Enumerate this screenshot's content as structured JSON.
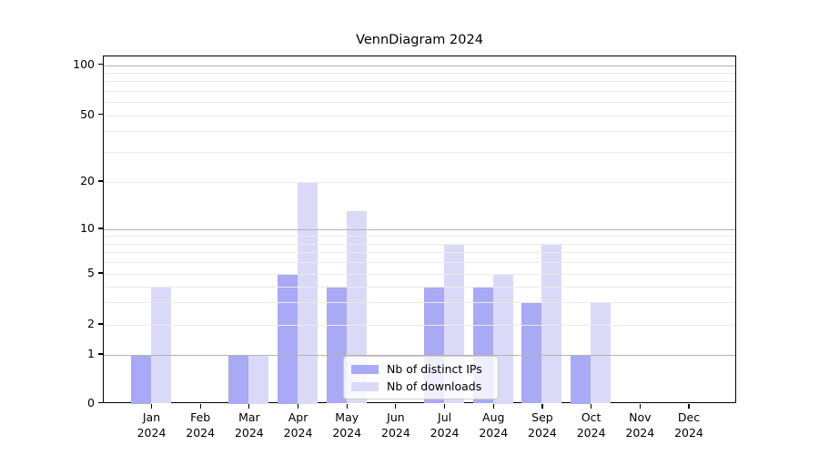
{
  "chart_data": {
    "type": "bar",
    "title": "VennDiagram 2024",
    "categories": [
      {
        "month": "Jan",
        "year": "2024"
      },
      {
        "month": "Feb",
        "year": "2024"
      },
      {
        "month": "Mar",
        "year": "2024"
      },
      {
        "month": "Apr",
        "year": "2024"
      },
      {
        "month": "May",
        "year": "2024"
      },
      {
        "month": "Jun",
        "year": "2024"
      },
      {
        "month": "Jul",
        "year": "2024"
      },
      {
        "month": "Aug",
        "year": "2024"
      },
      {
        "month": "Sep",
        "year": "2024"
      },
      {
        "month": "Oct",
        "year": "2024"
      },
      {
        "month": "Nov",
        "year": "2024"
      },
      {
        "month": "Dec",
        "year": "2024"
      }
    ],
    "series": [
      {
        "name": "Nb of distinct IPs",
        "color": "#a9a9f5",
        "values": [
          1,
          0,
          1,
          5,
          4,
          0,
          4,
          4,
          3,
          1,
          0,
          0
        ]
      },
      {
        "name": "Nb of downloads",
        "color": "#dadaf8",
        "values": [
          4,
          0,
          1,
          20,
          13,
          0,
          8,
          5,
          8,
          3,
          0,
          0
        ]
      }
    ],
    "xlabel": "",
    "ylabel": "",
    "yscale": "symlog (linear 0-1, logarithmic above 1)",
    "ylim": [
      0,
      113
    ],
    "ytick_labels": [
      0,
      1,
      2,
      5,
      10,
      20,
      50,
      100
    ],
    "grid": {
      "major_values": [
        1,
        10,
        100
      ],
      "minor_values": [
        2,
        3,
        4,
        5,
        6,
        7,
        8,
        9,
        20,
        30,
        40,
        50,
        60,
        70,
        80,
        90
      ]
    },
    "legend": {
      "position": "inside lower center",
      "entries": [
        "Nb of distinct IPs",
        "Nb of downloads"
      ]
    }
  }
}
